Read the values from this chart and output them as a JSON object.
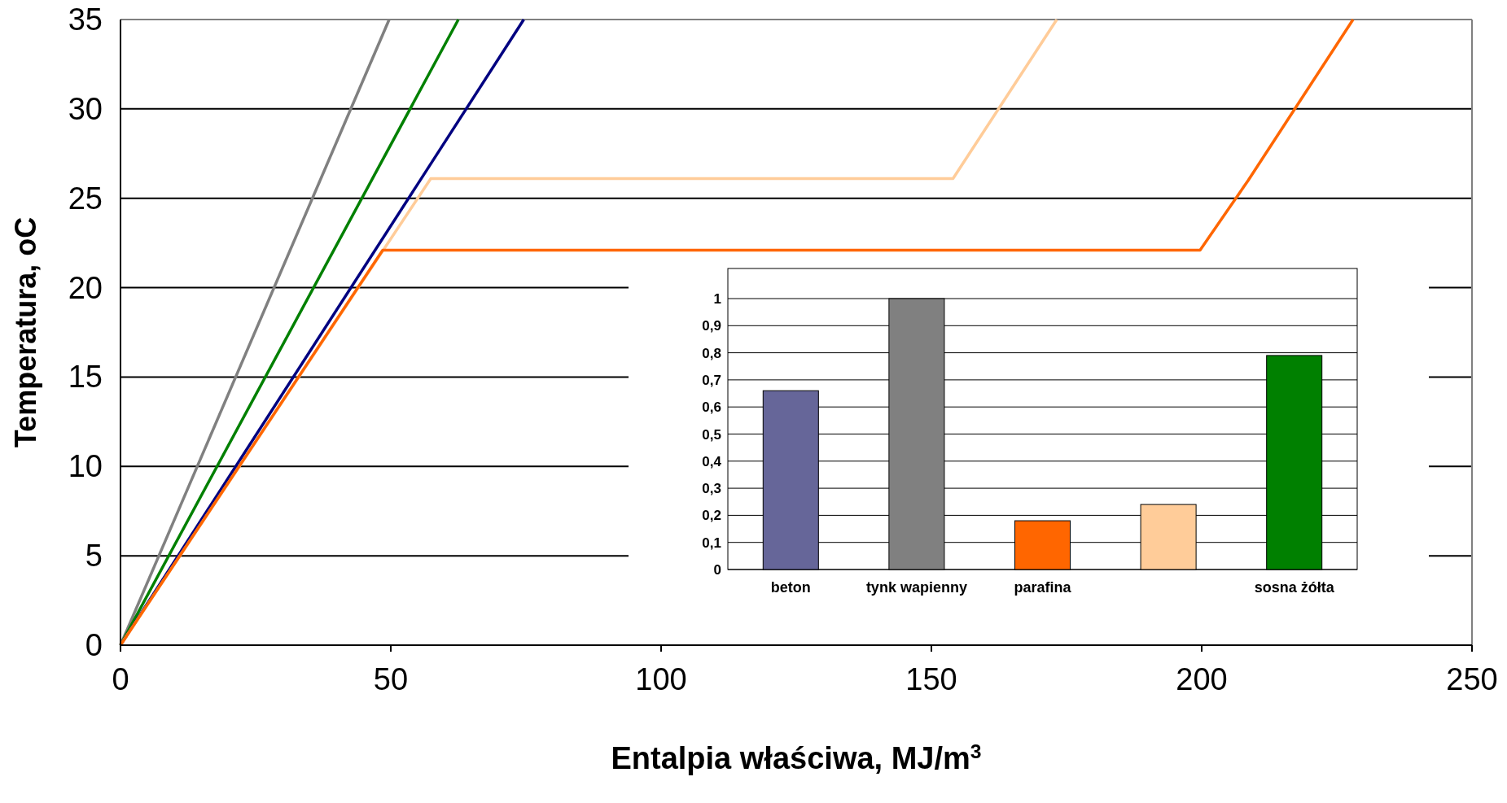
{
  "chart_data": [
    {
      "type": "line",
      "xlabel": "Entalpia właściwa, MJ/m$^{3}$",
      "ylabel": "Temperatura, oC",
      "xlim": [
        0,
        250
      ],
      "xticks": [
        0,
        50,
        100,
        150,
        200,
        250
      ],
      "ylim": [
        0,
        35
      ],
      "yticks": [
        0,
        5,
        10,
        15,
        20,
        25,
        30,
        35
      ],
      "grid": "y",
      "series": [
        {
          "color": "#808080",
          "x": [
            0,
            49.7
          ],
          "values": [
            0,
            35
          ]
        },
        {
          "color": "#008000",
          "x": [
            0,
            62.5
          ],
          "values": [
            0,
            35
          ]
        },
        {
          "color": "#000080",
          "x": [
            0,
            74.6
          ],
          "values": [
            0,
            35
          ]
        },
        {
          "color": "#ffcc99",
          "x": [
            0,
            57.4,
            154,
            173.2
          ],
          "values": [
            0,
            26.1,
            26.1,
            35
          ]
        },
        {
          "color": "#ff6600",
          "x": [
            0,
            48.5,
            199.7,
            208.6,
            228
          ],
          "values": [
            0,
            22.1,
            22.1,
            26,
            35
          ]
        }
      ]
    },
    {
      "type": "bar",
      "categories": [
        "beton",
        "tynk wapienny",
        "parafina",
        null,
        "sosna żółta"
      ],
      "values": [
        0.66,
        1,
        0.18,
        0.24,
        0.79
      ],
      "colors": [
        "#666699",
        "#808080",
        "#ff6600",
        "#ffcc99",
        "#008000"
      ],
      "ylim": [
        0,
        1
      ],
      "yticks": [
        0,
        {
          "value": 0.1,
          "label": "0,1"
        },
        {
          "value": 0.2,
          "label": "0,2"
        },
        {
          "value": 0.3,
          "label": "0,3"
        },
        {
          "value": 0.4,
          "label": "0,4"
        },
        {
          "value": 0.5,
          "label": "0,5"
        },
        {
          "value": 0.6,
          "label": "0,6"
        },
        {
          "value": 0.7,
          "label": "0,7"
        },
        {
          "value": 0.8,
          "label": "0,8"
        },
        {
          "value": 0.9,
          "label": "0,9"
        },
        1
      ],
      "grid": "y"
    }
  ]
}
